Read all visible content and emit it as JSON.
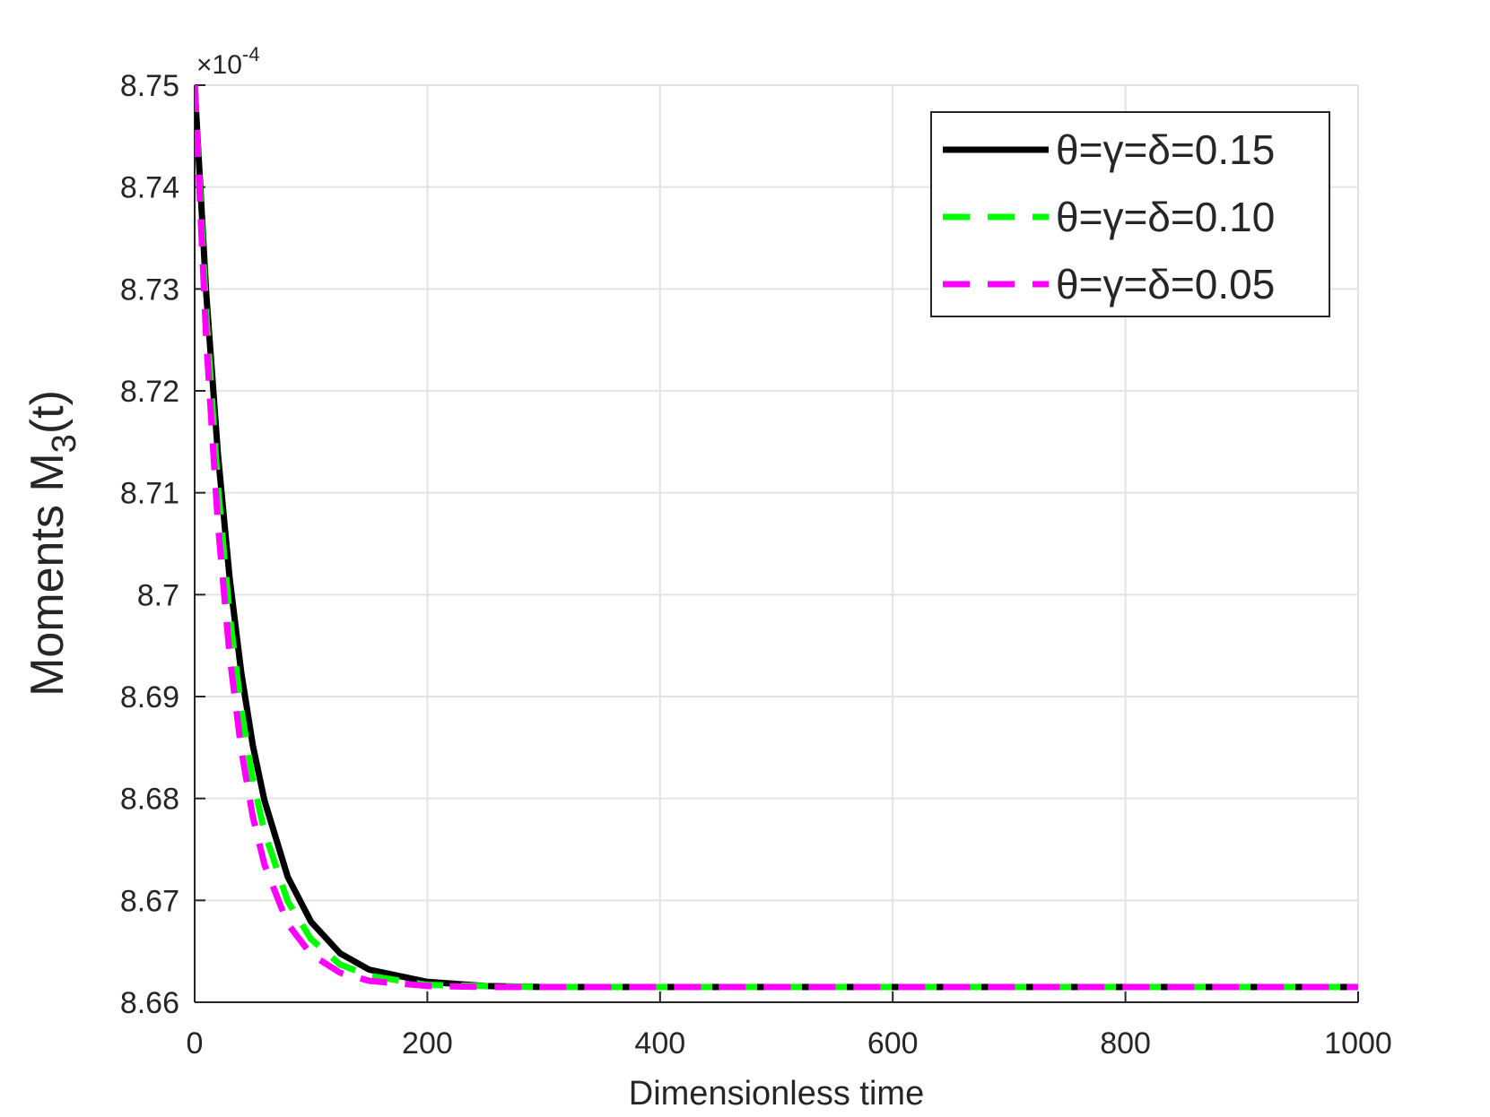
{
  "chart_data": {
    "type": "line",
    "y_label": {
      "text": "Moments M",
      "subscript": "3",
      "suffix": "(t)"
    },
    "x_label": "Dimensionless time",
    "y_multiplier": {
      "base": "×10",
      "exponent": "-4"
    },
    "x": [
      0,
      10,
      20,
      30,
      40,
      50,
      60,
      80,
      100,
      125,
      150,
      200,
      250,
      300,
      1000
    ],
    "series": [
      {
        "name": "θ=γ=δ=0.15",
        "color": "#000000",
        "dash": false,
        "values": [
          8.75,
          8.7295,
          8.7138,
          8.7017,
          8.6924,
          8.6852,
          8.6798,
          8.6723,
          8.6679,
          8.6648,
          8.6632,
          8.662,
          8.6616,
          8.6615,
          8.6615
        ]
      },
      {
        "name": "θ=γ=δ=0.10",
        "color": "#00ff00",
        "dash": true,
        "values": [
          8.75,
          8.7274,
          8.7106,
          8.6981,
          8.6888,
          8.6818,
          8.6767,
          8.6699,
          8.6662,
          8.6637,
          8.6626,
          8.6617,
          8.6616,
          8.6615,
          8.6615
        ]
      },
      {
        "name": "θ=γ=δ=0.05",
        "color": "#ff00ff",
        "dash": true,
        "values": [
          8.75,
          8.7249,
          8.7069,
          8.6941,
          8.6848,
          8.6782,
          8.6735,
          8.6677,
          8.6647,
          8.6629,
          8.6621,
          8.6616,
          8.6615,
          8.6615,
          8.6615
        ]
      }
    ],
    "xlim": [
      0,
      1000
    ],
    "xticks": [
      0,
      200,
      400,
      600,
      800,
      1000
    ],
    "ylim": [
      8.66,
      8.75
    ],
    "yticks": [
      8.66,
      8.67,
      8.68,
      8.69,
      8.7,
      8.71,
      8.72,
      8.73,
      8.74,
      8.75
    ],
    "grid": true,
    "legend": "upper right"
  }
}
